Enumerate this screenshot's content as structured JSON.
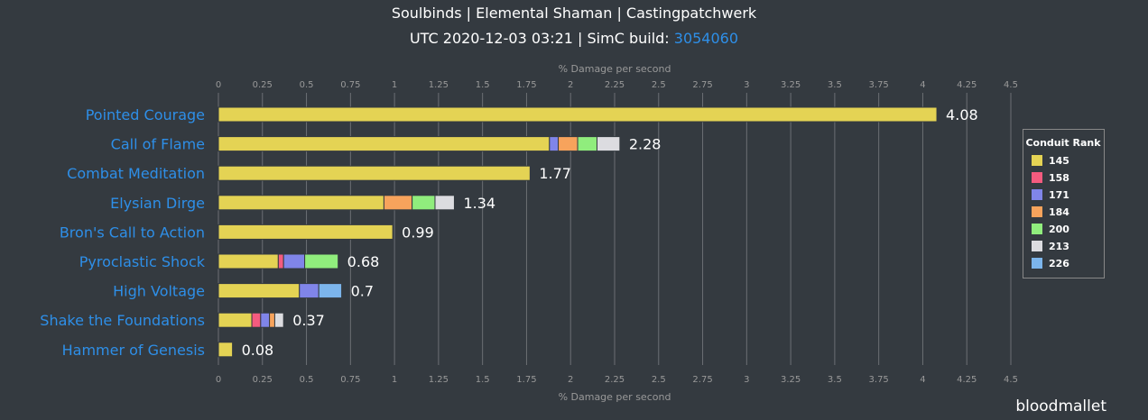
{
  "title": "Soulbinds | Elemental Shaman | Castingpatchwerk",
  "subtitle_prefix": "UTC 2020-12-03 03:21 | SimC build: ",
  "build": "3054060",
  "brand": "bloodmallet",
  "chart_data": {
    "type": "bar",
    "orientation": "horizontal",
    "stacked": true,
    "xlabel": "% Damage per second",
    "xlim": [
      0,
      4.5
    ],
    "xticks": [
      "0",
      "0.25",
      "0.5",
      "0.75",
      "1",
      "1.25",
      "1.5",
      "1.75",
      "2",
      "2.25",
      "2.5",
      "2.75",
      "3",
      "3.25",
      "3.5",
      "3.75",
      "4",
      "4.25",
      "4.5"
    ],
    "grid": true,
    "legend": {
      "title": "Conduit Rank",
      "placement": "right"
    },
    "series": [
      {
        "name": "145",
        "color": "#e4d354"
      },
      {
        "name": "158",
        "color": "#f45b7f"
      },
      {
        "name": "171",
        "color": "#8085e9"
      },
      {
        "name": "184",
        "color": "#f7a35c"
      },
      {
        "name": "200",
        "color": "#90ed7d"
      },
      {
        "name": "213",
        "color": "#dcdce0"
      },
      {
        "name": "226",
        "color": "#7cb5ec"
      }
    ],
    "categories": [
      "Pointed Courage",
      "Call of Flame",
      "Combat Meditation",
      "Elysian Dirge",
      "Bron's Call to Action",
      "Pyroclastic Shock",
      "High Voltage",
      "Shake the Foundations",
      "Hammer of Genesis"
    ],
    "cumulative_values_by_rank": [
      {
        "145": 4.08
      },
      {
        "145": 1.88,
        "171": 1.93,
        "184": 2.04,
        "200": 2.15,
        "213": 2.28
      },
      {
        "145": 1.77
      },
      {
        "145": 0.94,
        "184": 1.1,
        "200": 1.23,
        "213": 1.34
      },
      {
        "145": 0.99
      },
      {
        "145": 0.34,
        "158": 0.37,
        "171": 0.49,
        "200": 0.68
      },
      {
        "145": 0.46,
        "171": 0.57,
        "226": 0.7
      },
      {
        "145": 0.19,
        "158": 0.24,
        "171": 0.29,
        "184": 0.32,
        "213": 0.37
      },
      {
        "145": 0.08
      }
    ],
    "totals": [
      "4.08",
      "2.28",
      "1.77",
      "1.34",
      "0.99",
      "0.68",
      "0.7",
      "0.37",
      "0.08"
    ]
  }
}
